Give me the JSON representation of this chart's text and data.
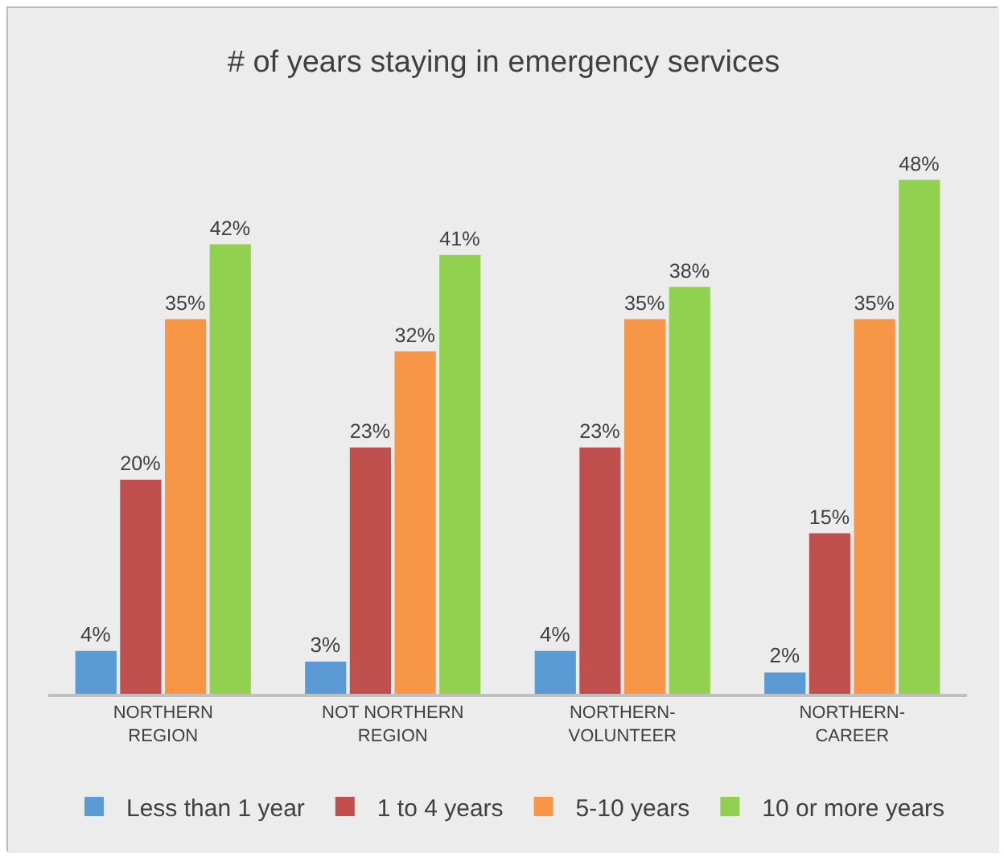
{
  "chart_data": {
    "type": "bar",
    "title": "# of years staying in emergency services",
    "categories": [
      "NORTHERN REGION",
      "NOT NORTHERN REGION",
      "NORTHERN-VOLUNTEER",
      "NORTHERN-CAREER"
    ],
    "series": [
      {
        "name": "Less than 1 year",
        "color": "#5b9bd5",
        "values": [
          4,
          3,
          4,
          2
        ],
        "value_labels": [
          "4%",
          "3%",
          "4%",
          "2%"
        ]
      },
      {
        "name": "1 to 4 years",
        "color": "#c0504d",
        "values": [
          20,
          23,
          23,
          15
        ],
        "value_labels": [
          "20%",
          "23%",
          "23%",
          "15%"
        ]
      },
      {
        "name": "5-10 years",
        "color": "#f79646",
        "values": [
          35,
          32,
          35,
          35
        ],
        "value_labels": [
          "35%",
          "32%",
          "35%",
          "35%"
        ]
      },
      {
        "name": "10 or more years",
        "color": "#92d050",
        "values": [
          42,
          41,
          38,
          48
        ],
        "value_labels": [
          "42%",
          "41%",
          "38%",
          "48%"
        ]
      }
    ],
    "legend": "bottom"
  }
}
